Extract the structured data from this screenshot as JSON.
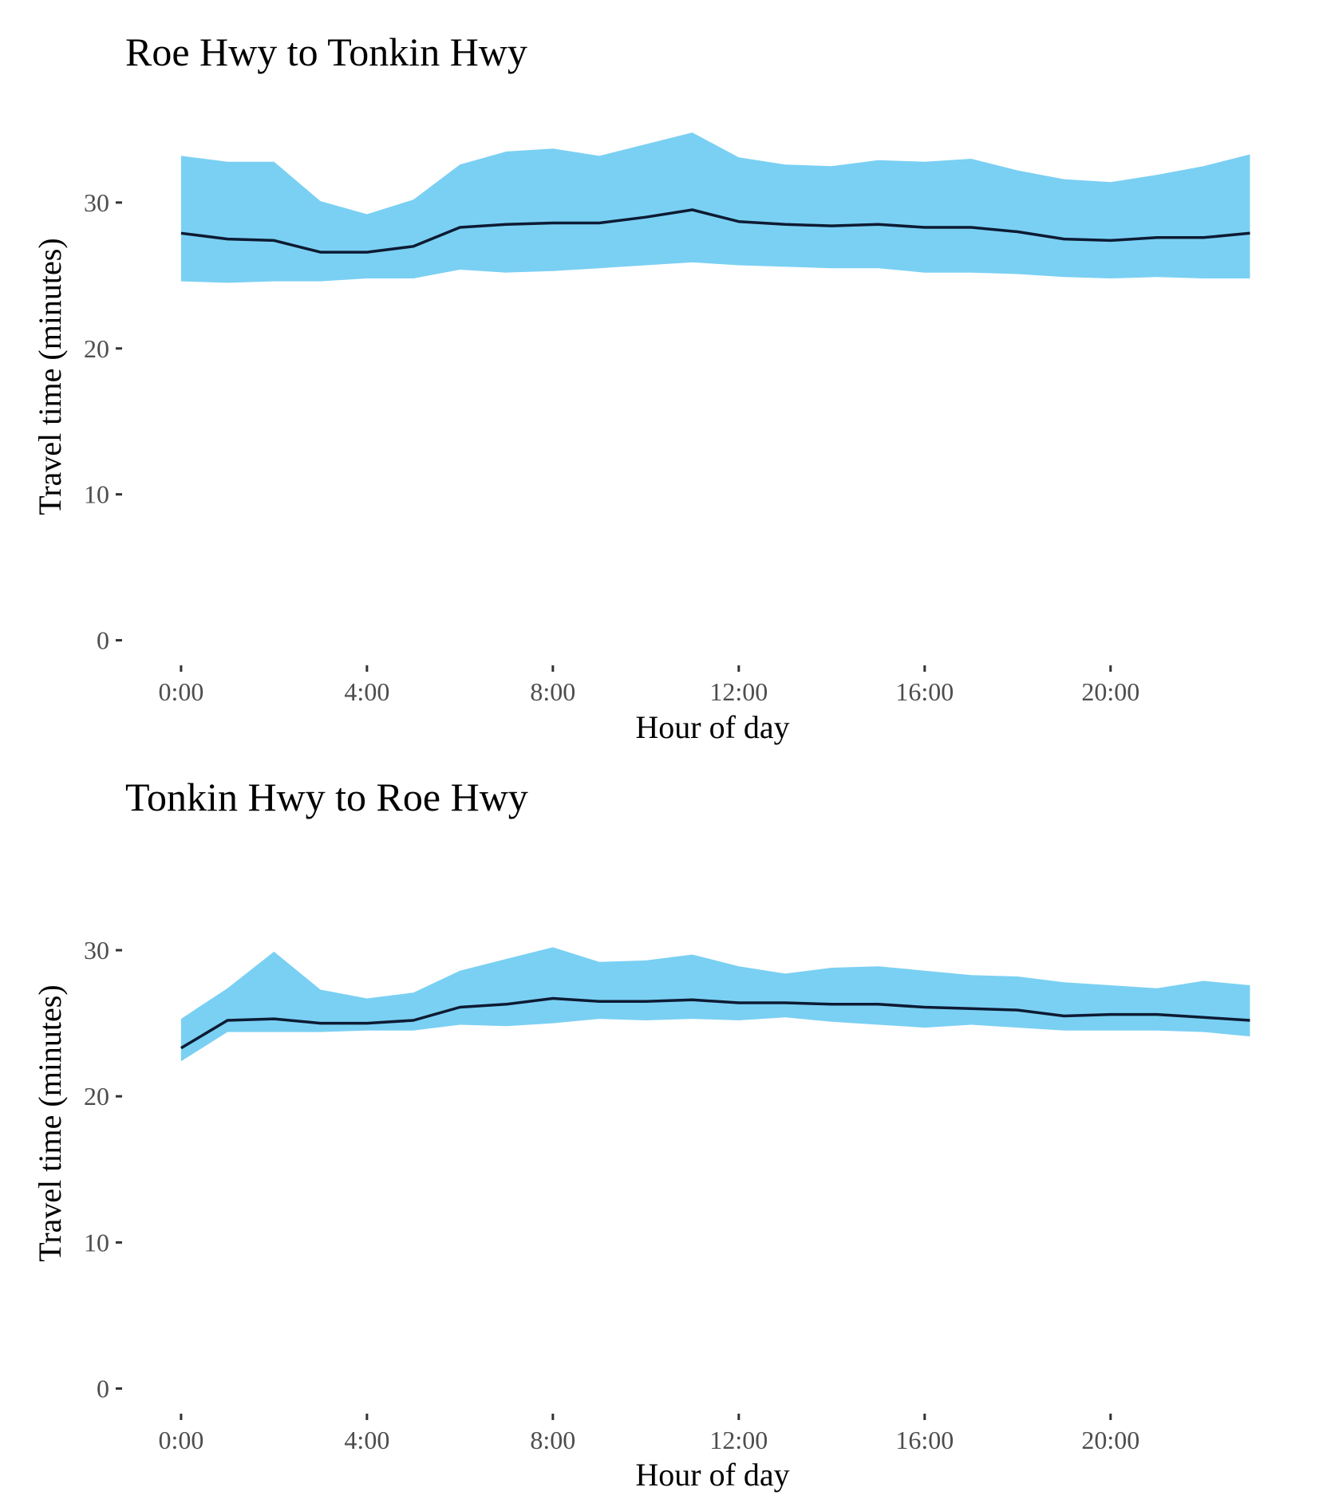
{
  "colors": {
    "ribbon": "#7ad0f3",
    "line": "#0d1b33",
    "tick": "#333333"
  },
  "chart_data": [
    {
      "type": "area",
      "title": "Roe Hwy to Tonkin Hwy",
      "xlabel": "Hour of day",
      "ylabel": "Travel time (minutes)",
      "x": [
        0,
        1,
        2,
        3,
        4,
        5,
        6,
        7,
        8,
        9,
        10,
        11,
        12,
        13,
        14,
        15,
        16,
        17,
        18,
        19,
        20,
        21,
        22,
        23
      ],
      "x_ticks": [
        0,
        4,
        8,
        12,
        16,
        20
      ],
      "x_tick_labels": [
        "0:00",
        "4:00",
        "8:00",
        "12:00",
        "16:00",
        "20:00"
      ],
      "y_ticks": [
        0,
        10,
        20,
        30
      ],
      "y_tick_labels": [
        "0",
        "10",
        "20",
        "30"
      ],
      "xlim": [
        -1.2,
        23.3
      ],
      "ylim": [
        -1.5,
        36.5
      ],
      "grid": false,
      "series": [
        {
          "role": "median",
          "values": [
            27.9,
            27.5,
            27.4,
            26.6,
            26.6,
            27.0,
            28.3,
            28.5,
            28.6,
            28.6,
            29.0,
            29.5,
            28.7,
            28.5,
            28.4,
            28.5,
            28.3,
            28.3,
            28.0,
            27.5,
            27.4,
            27.6,
            27.6,
            27.9
          ]
        },
        {
          "role": "upper",
          "values": [
            33.2,
            32.8,
            32.8,
            30.1,
            29.2,
            30.2,
            32.6,
            33.5,
            33.7,
            33.2,
            34.0,
            34.8,
            33.1,
            32.6,
            32.5,
            32.9,
            32.8,
            33.0,
            32.2,
            31.6,
            31.4,
            31.9,
            32.5,
            33.3
          ]
        },
        {
          "role": "lower",
          "values": [
            24.6,
            24.5,
            24.6,
            24.6,
            24.8,
            24.8,
            25.4,
            25.2,
            25.3,
            25.5,
            25.7,
            25.9,
            25.7,
            25.6,
            25.5,
            25.5,
            25.2,
            25.2,
            25.1,
            24.9,
            24.8,
            24.9,
            24.8,
            24.8
          ]
        }
      ]
    },
    {
      "type": "area",
      "title": "Tonkin Hwy to Roe Hwy",
      "xlabel": "Hour of day",
      "ylabel": "Travel time (minutes)",
      "x": [
        0,
        1,
        2,
        3,
        4,
        5,
        6,
        7,
        8,
        9,
        10,
        11,
        12,
        13,
        14,
        15,
        16,
        17,
        18,
        19,
        20,
        21,
        22,
        23
      ],
      "x_ticks": [
        0,
        4,
        8,
        12,
        16,
        20
      ],
      "x_tick_labels": [
        "0:00",
        "4:00",
        "8:00",
        "12:00",
        "16:00",
        "20:00"
      ],
      "y_ticks": [
        0,
        10,
        20,
        30
      ],
      "y_tick_labels": [
        "0",
        "10",
        "20",
        "30"
      ],
      "xlim": [
        -1.2,
        23.3
      ],
      "ylim": [
        -1.5,
        36.5
      ],
      "grid": false,
      "series": [
        {
          "role": "median",
          "values": [
            23.3,
            25.2,
            25.3,
            25.0,
            25.0,
            25.2,
            26.1,
            26.3,
            26.7,
            26.5,
            26.5,
            26.6,
            26.4,
            26.4,
            26.3,
            26.3,
            26.1,
            26.0,
            25.9,
            25.5,
            25.6,
            25.6,
            25.4,
            25.2
          ]
        },
        {
          "role": "upper",
          "values": [
            25.3,
            27.4,
            29.9,
            27.3,
            26.7,
            27.1,
            28.6,
            29.4,
            30.2,
            29.2,
            29.3,
            29.7,
            28.9,
            28.4,
            28.8,
            28.9,
            28.6,
            28.3,
            28.2,
            27.8,
            27.6,
            27.4,
            27.9,
            27.6
          ]
        },
        {
          "role": "lower",
          "values": [
            22.4,
            24.4,
            24.4,
            24.4,
            24.5,
            24.5,
            24.9,
            24.8,
            25.0,
            25.3,
            25.2,
            25.3,
            25.2,
            25.4,
            25.1,
            24.9,
            24.7,
            24.9,
            24.7,
            24.5,
            24.5,
            24.5,
            24.4,
            24.1
          ]
        }
      ]
    }
  ]
}
